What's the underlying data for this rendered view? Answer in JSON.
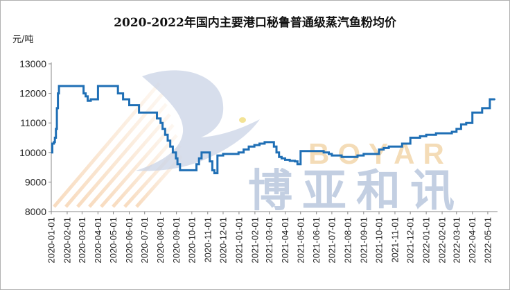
{
  "chart_data": {
    "type": "line",
    "title": "2020-2022年国内主要港口秘鲁普通级蒸汽鱼粉均价",
    "ylabel": "元/吨",
    "xlabel": "",
    "ylim": [
      8000,
      13000
    ],
    "yticks": [
      "13000",
      "12000",
      "11000",
      "10000",
      "9000",
      "8000"
    ],
    "xticks": [
      "2020-01-01",
      "2020-02-01",
      "2020-03-01",
      "2020-04-01",
      "2020-05-01",
      "2020-06-01",
      "2020-07-01",
      "2020-08-01",
      "2020-09-01",
      "2020-10-01",
      "2020-11-01",
      "2020-12-01",
      "2021-01-01",
      "2021-02-01",
      "2021-03-01",
      "2021-04-01",
      "2021-05-01",
      "2021-06-01",
      "2021-07-01",
      "2021-08-01",
      "2021-09-01",
      "2021-10-01",
      "2021-11-01",
      "2021-12-01",
      "2022-01-01",
      "2022-02-01",
      "2022-03-01",
      "2022-04-01",
      "2022-05-01"
    ],
    "grid": false,
    "line_color": "#1f6fb5",
    "watermark": {
      "latin": "BOYAR",
      "chinese": "博亚和讯"
    },
    "series": [
      {
        "x": [
          "2020-01-01",
          "2020-01-03",
          "2020-01-06",
          "2020-01-08",
          "2020-01-10",
          "2020-01-12",
          "2020-01-14",
          "2020-01-16",
          "2020-02-05",
          "2020-02-08",
          "2020-02-15",
          "2020-03-01",
          "2020-03-04",
          "2020-03-08",
          "2020-03-12",
          "2020-03-18",
          "2020-04-01",
          "2020-05-01",
          "2020-05-10",
          "2020-05-20",
          "2020-06-01",
          "2020-06-20",
          "2020-07-01",
          "2020-07-15",
          "2020-07-25",
          "2020-08-01",
          "2020-08-05",
          "2020-08-10",
          "2020-08-15",
          "2020-08-20",
          "2020-08-25",
          "2020-08-31",
          "2020-09-03",
          "2020-09-08",
          "2020-09-15",
          "2020-09-25",
          "2020-10-05",
          "2020-10-10",
          "2020-10-15",
          "2020-10-20",
          "2020-10-25",
          "2020-11-01",
          "2020-11-05",
          "2020-11-10",
          "2020-11-14",
          "2020-11-20",
          "2020-11-25",
          "2020-12-01",
          "2020-12-20",
          "2020-12-31",
          "2021-01-10",
          "2021-01-20",
          "2021-01-31",
          "2021-02-10",
          "2021-02-20",
          "2021-03-01",
          "2021-03-10",
          "2021-03-15",
          "2021-03-20",
          "2021-03-25",
          "2021-04-01",
          "2021-04-10",
          "2021-04-20",
          "2021-04-25",
          "2021-05-01",
          "2021-05-15",
          "2021-06-01",
          "2021-06-15",
          "2021-06-25",
          "2021-07-01",
          "2021-07-20",
          "2021-08-01",
          "2021-08-20",
          "2021-09-01",
          "2021-09-15",
          "2021-10-01",
          "2021-10-10",
          "2021-10-20",
          "2021-11-01",
          "2021-11-15",
          "2021-12-01",
          "2021-12-20",
          "2022-01-01",
          "2022-01-20",
          "2022-02-01",
          "2022-02-20",
          "2022-03-01",
          "2022-03-10",
          "2022-03-20",
          "2022-04-01",
          "2022-04-20",
          "2022-05-01",
          "2022-05-05",
          "2022-05-15"
        ],
        "y": [
          10000,
          10300,
          10350,
          10500,
          10800,
          11500,
          12000,
          12250,
          12250,
          12250,
          12250,
          12250,
          12000,
          11900,
          11750,
          11800,
          12250,
          12250,
          12000,
          11800,
          11600,
          11350,
          11350,
          11350,
          11150,
          11000,
          10800,
          10600,
          10400,
          10200,
          10000,
          9800,
          9600,
          9400,
          9400,
          9400,
          9400,
          9600,
          9800,
          10000,
          10000,
          10000,
          9700,
          9400,
          9300,
          9900,
          9900,
          9950,
          9950,
          10000,
          10100,
          10200,
          10250,
          10300,
          10350,
          10350,
          10200,
          10000,
          9850,
          9800,
          9750,
          9720,
          9700,
          9600,
          10050,
          10050,
          10050,
          10000,
          9950,
          9900,
          9850,
          9850,
          9900,
          9950,
          9950,
          10100,
          10150,
          10200,
          10200,
          10300,
          10500,
          10550,
          10600,
          10650,
          10650,
          10700,
          10800,
          10950,
          11000,
          11350,
          11500,
          11500,
          11800,
          11800
        ]
      }
    ]
  }
}
